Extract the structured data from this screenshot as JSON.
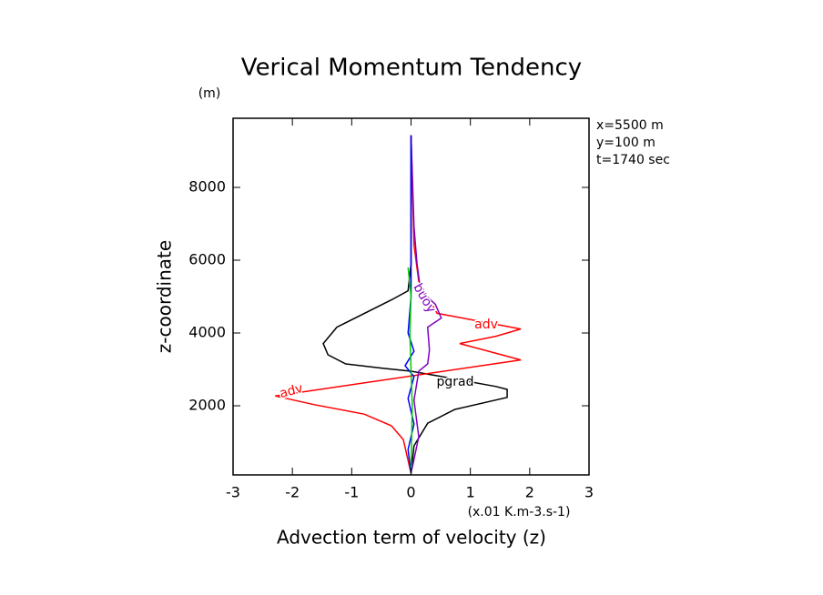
{
  "chart_data": {
    "type": "line",
    "title": "Verical Momentum Tendency",
    "y_unit": "(m)",
    "y_label": "z-coordinate",
    "x_label": "Advection term of velocity (z)",
    "x_unit": "(x.01 K.m-3.s-1)",
    "annotations": [
      "x=5500 m",
      "y=100 m",
      "t=1740 sec"
    ],
    "xlim": [
      -3,
      3
    ],
    "xticks": [
      -3,
      -2,
      -1,
      0,
      1,
      2,
      3
    ],
    "ylim": [
      100,
      9900
    ],
    "yticks": [
      2000,
      4000,
      6000,
      8000
    ],
    "series": [
      {
        "name": "pgrad",
        "color": "#000000",
        "values": [
          0,
          0,
          -0.05,
          -0.33,
          -1.25,
          -1.48,
          -1.4,
          -1.1,
          -0.48,
          0,
          0.59,
          1.43,
          1.62,
          1.62,
          0.74,
          0.28,
          0.05,
          0
        ],
        "z": [
          9430,
          5900,
          5160,
          4910,
          4160,
          3710,
          3400,
          3150,
          3030,
          2950,
          2780,
          2530,
          2450,
          2230,
          1900,
          1520,
          900,
          140
        ]
      },
      {
        "name": "adv",
        "color": "#ff0000",
        "values": [
          0,
          0.05,
          0.13,
          0.44,
          1.85,
          1.43,
          0.82,
          1.85,
          -2.29,
          -1.63,
          -0.79,
          -0.33,
          -0.13,
          0
        ],
        "z": [
          9430,
          6420,
          5420,
          4540,
          4110,
          3910,
          3710,
          3260,
          2270,
          2030,
          1770,
          1450,
          1070,
          140
        ]
      },
      {
        "name": "buoy",
        "color": "#7f00bf",
        "values": [
          0,
          0.05,
          0.1,
          0.16,
          0.41,
          0.51,
          0.28,
          0.31,
          0.28,
          0.13,
          0.05,
          0.13,
          0
        ],
        "z": [
          9430,
          6920,
          5920,
          5160,
          4790,
          4410,
          4160,
          3530,
          3150,
          2950,
          2150,
          1150,
          140
        ]
      },
      {
        "color": "#0000ff",
        "values": [
          0,
          0,
          -0.05,
          0.05,
          -0.1,
          0.05,
          -0.05,
          0.05,
          -0.05,
          0
        ],
        "z": [
          9430,
          5000,
          4000,
          3500,
          3100,
          2800,
          2200,
          1500,
          800,
          140
        ]
      },
      {
        "color": "#00cc00",
        "values": [
          -0.05,
          0,
          -0.02,
          0,
          0.02,
          0
        ],
        "z": [
          5800,
          5000,
          4000,
          3000,
          2000,
          140
        ]
      }
    ]
  }
}
